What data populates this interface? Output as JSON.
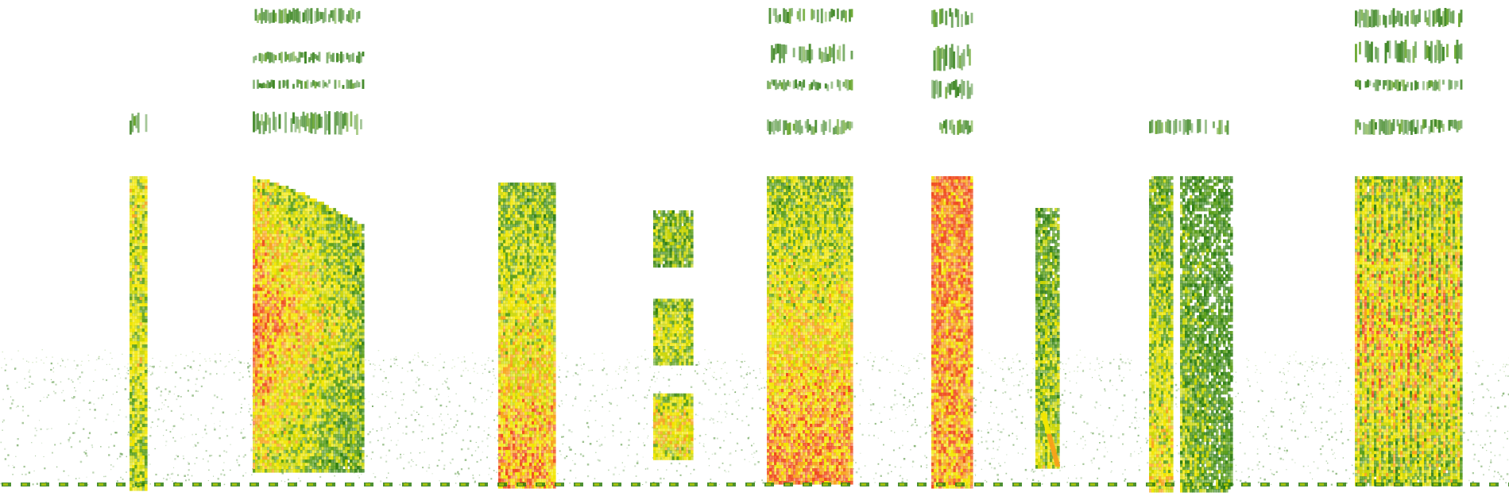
{
  "image": {
    "kind": "spectrogram",
    "axes_printed": false,
    "text_printed": false
  },
  "palette": {
    "background": "#ffffff",
    "low": "#2e7d12",
    "mid_low": "#5a9e1a",
    "mid": "#c8d400",
    "mid_high": "#f2e600",
    "high": "#f7a21b",
    "peak": "#ef4a1e"
  },
  "bursts": [
    {
      "id": "burst-1",
      "shape": "thin-column",
      "intensity": 0.55,
      "peak_band": "full",
      "upper_harmonics": true
    },
    {
      "id": "burst-2",
      "shape": "wide-fan",
      "intensity": 0.8,
      "peak_band": "middle",
      "upper_harmonics": true
    },
    {
      "id": "burst-3",
      "shape": "column",
      "intensity": 0.65,
      "peak_band": "low",
      "upper_harmonics": false
    },
    {
      "id": "burst-4",
      "shape": "segmented-column",
      "intensity": 0.6,
      "peak_band": "low",
      "upper_harmonics": false
    },
    {
      "id": "burst-5",
      "shape": "wide-column",
      "intensity": 0.7,
      "peak_band": "low",
      "upper_harmonics": true
    },
    {
      "id": "burst-6",
      "shape": "column",
      "intensity": 0.9,
      "peak_band": "full",
      "upper_harmonics": true
    },
    {
      "id": "burst-7",
      "shape": "thin-sweep",
      "intensity": 0.5,
      "peak_band": "low",
      "upper_harmonics": false
    },
    {
      "id": "burst-8",
      "shape": "split-column",
      "intensity": 0.55,
      "peak_band": "low",
      "upper_harmonics": true
    },
    {
      "id": "burst-9",
      "shape": "striated-column",
      "intensity": 0.8,
      "peak_band": "middle",
      "upper_harmonics": true
    }
  ]
}
